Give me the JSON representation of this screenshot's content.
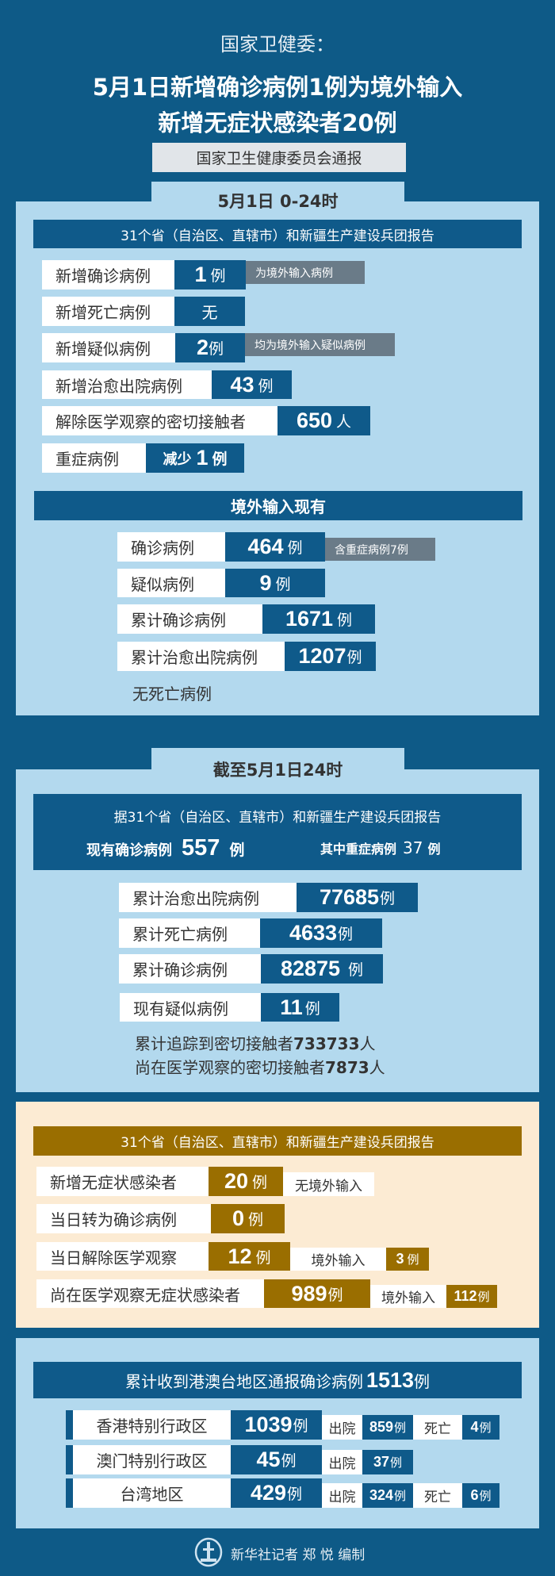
{
  "header": {
    "subtitle": "国家卫健委：",
    "title_line1": "5月1日新增确诊病例1例为境外输入",
    "title_line2": "新增无症状感染者20例",
    "source": "国家卫生健康委员会通报"
  },
  "daily": {
    "tab": "5月1日 0-24时",
    "report_header": "31个省（自治区、直辖市）和新疆生产建设兵团报告",
    "rows": [
      {
        "label": "新增确诊病例",
        "value": "1",
        "unit": "例",
        "note": "为境外输入病例"
      },
      {
        "label": "新增死亡病例",
        "value": "无"
      },
      {
        "label": "新增疑似病例",
        "value": "2",
        "unit": "例",
        "note": "均为境外输入疑似病例"
      },
      {
        "label": "新增治愈出院病例",
        "value": "43",
        "unit": "例"
      },
      {
        "label": "解除医学观察的密切接触者",
        "value": "650",
        "unit": "人"
      },
      {
        "label": "重症病例",
        "prefix": "减少",
        "value": "1",
        "unit": "例"
      }
    ],
    "imported": {
      "header": "境外输入现有",
      "rows": [
        {
          "label": "确诊病例",
          "value": "464",
          "unit": "例",
          "note": "含重症病例7例"
        },
        {
          "label": "疑似病例",
          "value": "9",
          "unit": "例"
        },
        {
          "label": "累计确诊病例",
          "value": "1671",
          "unit": "例"
        },
        {
          "label": "累计治愈出院病例",
          "value": "1207",
          "unit": "例"
        }
      ],
      "footer": "无死亡病例"
    }
  },
  "cumulative": {
    "tab": "截至5月1日24时",
    "report_line": "据31个省（自治区、直辖市）和新疆生产建设兵团报告",
    "current_label": "现有确诊病例",
    "current_value": "557",
    "current_unit": "例",
    "severe_label": "其中重症病例",
    "severe_value": "37",
    "severe_unit": "例",
    "rows": [
      {
        "label": "累计治愈出院病例",
        "value": "77685",
        "unit": "例"
      },
      {
        "label": "累计死亡病例",
        "value": "4633",
        "unit": "例"
      },
      {
        "label": "累计确诊病例",
        "value": "82875",
        "unit": "例"
      },
      {
        "label": "现有疑似病例",
        "value": "11",
        "unit": "例"
      }
    ],
    "contacts_traced": {
      "label": "累计追踪到密切接触者",
      "value": "733733",
      "unit": "人"
    },
    "contacts_observed": {
      "label": "尚在医学观察的密切接触者",
      "value": "7873",
      "unit": "人"
    }
  },
  "asymptomatic": {
    "header": "31个省（自治区、直辖市）和新疆生产建设兵团报告",
    "rows": [
      {
        "label": "新增无症状感染者",
        "value": "20",
        "unit": "例",
        "note_label": "无境外输入"
      },
      {
        "label": "当日转为确诊病例",
        "value": "0",
        "unit": "例"
      },
      {
        "label": "当日解除医学观察",
        "value": "12",
        "unit": "例",
        "note_label": "境外输入",
        "note_value": "3",
        "note_unit": "例"
      },
      {
        "label": "尚在医学观察无症状感染者",
        "value": "989",
        "unit": "例",
        "note_label": "境外输入",
        "note_value": "112",
        "note_unit": "例"
      }
    ]
  },
  "hmt": {
    "header_text": "累计收到港澳台地区通报确诊病例",
    "total": "1513",
    "unit": "例",
    "rows": [
      {
        "region": "香港特别行政区",
        "value": "1039",
        "unit": "例",
        "discharged_label": "出院",
        "discharged": "859",
        "death_label": "死亡",
        "deaths": "4"
      },
      {
        "region": "澳门特别行政区",
        "value": "45",
        "unit": "例",
        "discharged_label": "出院",
        "discharged": "37"
      },
      {
        "region": "台湾地区",
        "value": "429",
        "unit": "例",
        "discharged_label": "出院",
        "discharged": "324",
        "death_label": "死亡",
        "deaths": "6"
      }
    ]
  },
  "footer": {
    "credit": "新华社记者 郑 悦 编制",
    "logo_text": "XINHUA"
  },
  "colors": {
    "background": "#0e5a87",
    "panel": "#b3d9ee",
    "bar": "#0f5a8a",
    "note_gray": "#6a7b88",
    "cream": "#fcebd3",
    "gold": "#9a6e00"
  }
}
